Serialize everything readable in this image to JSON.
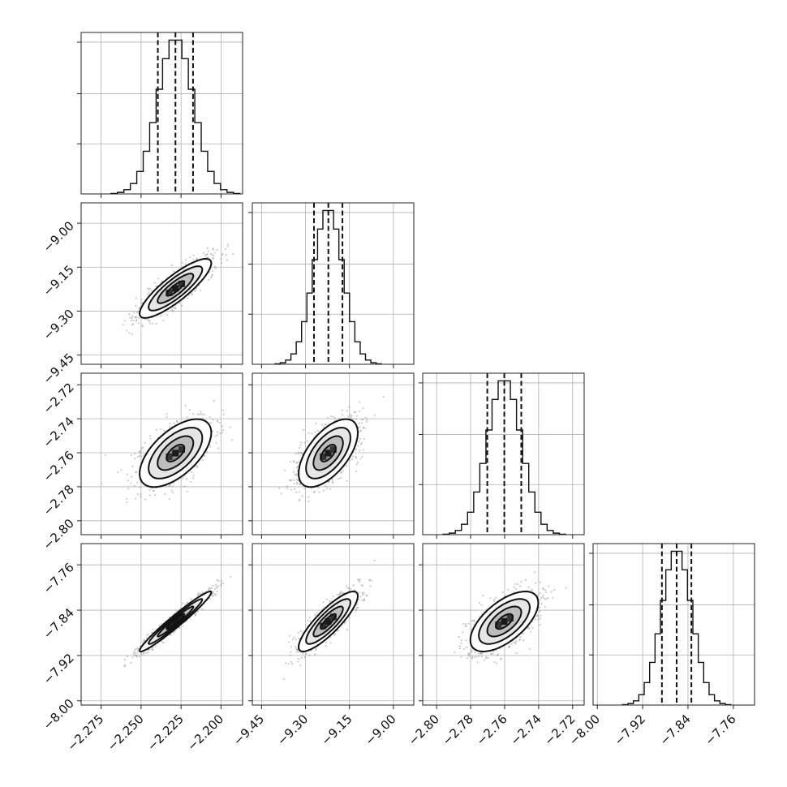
{
  "chart_data": {
    "type": "corner",
    "grid": true,
    "parameters": [
      {
        "mean": -2.2285,
        "std": 0.0112,
        "range": [
          -2.2875,
          -2.1865
        ],
        "ticks": [
          "−2.275",
          "−2.250",
          "−2.225",
          "−2.200"
        ],
        "tick_values": [
          -2.275,
          -2.25,
          -2.225,
          -2.2
        ],
        "quantiles": [
          -2.2395,
          -2.2285,
          -2.2175
        ]
      },
      {
        "mean": -9.2225,
        "std": 0.0505,
        "range": [
          -9.4815,
          -8.9305
        ],
        "ticks": [
          "−9.45",
          "−9.30",
          "−9.15",
          "−9.00"
        ],
        "tick_values": [
          -9.45,
          -9.3,
          -9.15,
          -9.0
        ],
        "quantiles": [
          -9.271,
          -9.222,
          -9.174
        ]
      },
      {
        "mean": -2.7602,
        "std": 0.01,
        "range": [
          -2.8082,
          -2.7132
        ],
        "ticks": [
          "−2.80",
          "−2.78",
          "−2.76",
          "−2.74",
          "−2.72"
        ],
        "tick_values": [
          -2.8,
          -2.78,
          -2.76,
          -2.74,
          -2.72
        ],
        "quantiles": [
          -2.7702,
          -2.7602,
          -2.7502
        ]
      },
      {
        "mean": -7.86,
        "std": 0.0265,
        "range": [
          -8.0075,
          -7.7225
        ],
        "ticks": [
          "−8.00",
          "−7.92",
          "−7.84",
          "−7.76"
        ],
        "tick_values": [
          -8.0,
          -7.92,
          -7.84,
          -7.76
        ],
        "quantiles": [
          -7.886,
          -7.86,
          -7.834
        ]
      }
    ],
    "correlations": [
      [
        1,
        0.85,
        0.6,
        0.97
      ],
      [
        0.85,
        1,
        0.6,
        0.85
      ],
      [
        0.6,
        0.6,
        1,
        0.62
      ],
      [
        0.97,
        0.85,
        0.62,
        1
      ]
    ],
    "histogram": {
      "bins": 20
    },
    "contour_levels_sigma": [
      0.5,
      1.0,
      1.5,
      2.0
    ],
    "colors": {
      "line": "#111111",
      "points": "#8c8c8c",
      "density": "#000000",
      "grid": "#b0b0b0"
    }
  }
}
